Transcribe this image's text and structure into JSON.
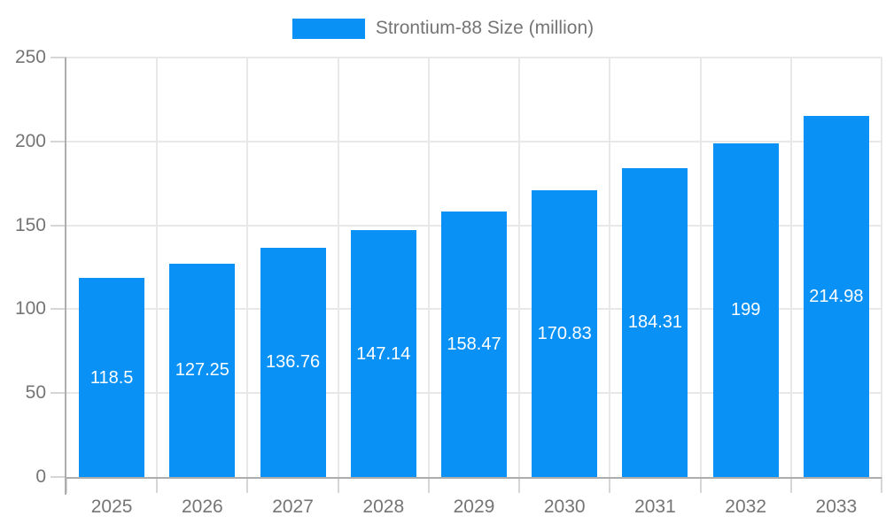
{
  "legend": {
    "label": "Strontium-88 Size (million)"
  },
  "chart_data": {
    "type": "bar",
    "title": "",
    "categories": [
      "2025",
      "2026",
      "2027",
      "2028",
      "2029",
      "2030",
      "2031",
      "2032",
      "2033"
    ],
    "series": [
      {
        "name": "Strontium-88 Size (million)",
        "values": [
          118.5,
          127.25,
          136.76,
          147.14,
          158.47,
          170.83,
          184.31,
          199,
          214.98
        ]
      }
    ],
    "value_labels": [
      "118.5",
      "127.25",
      "136.76",
      "147.14",
      "158.47",
      "170.83",
      "184.31",
      "199",
      "214.98"
    ],
    "xlabel": "",
    "ylabel": "",
    "ylim": [
      0,
      250
    ],
    "yticks": [
      0,
      50,
      100,
      150,
      200,
      250
    ],
    "grid": true,
    "legend_position": "top-center",
    "colors": {
      "bar": "#0991f5",
      "gridline": "#e8e8e8",
      "axis_line": "#adadad",
      "tick": "#d6d6d6",
      "axis_text": "#757575",
      "data_label": "#ffffff",
      "background": "#ffffff"
    }
  }
}
